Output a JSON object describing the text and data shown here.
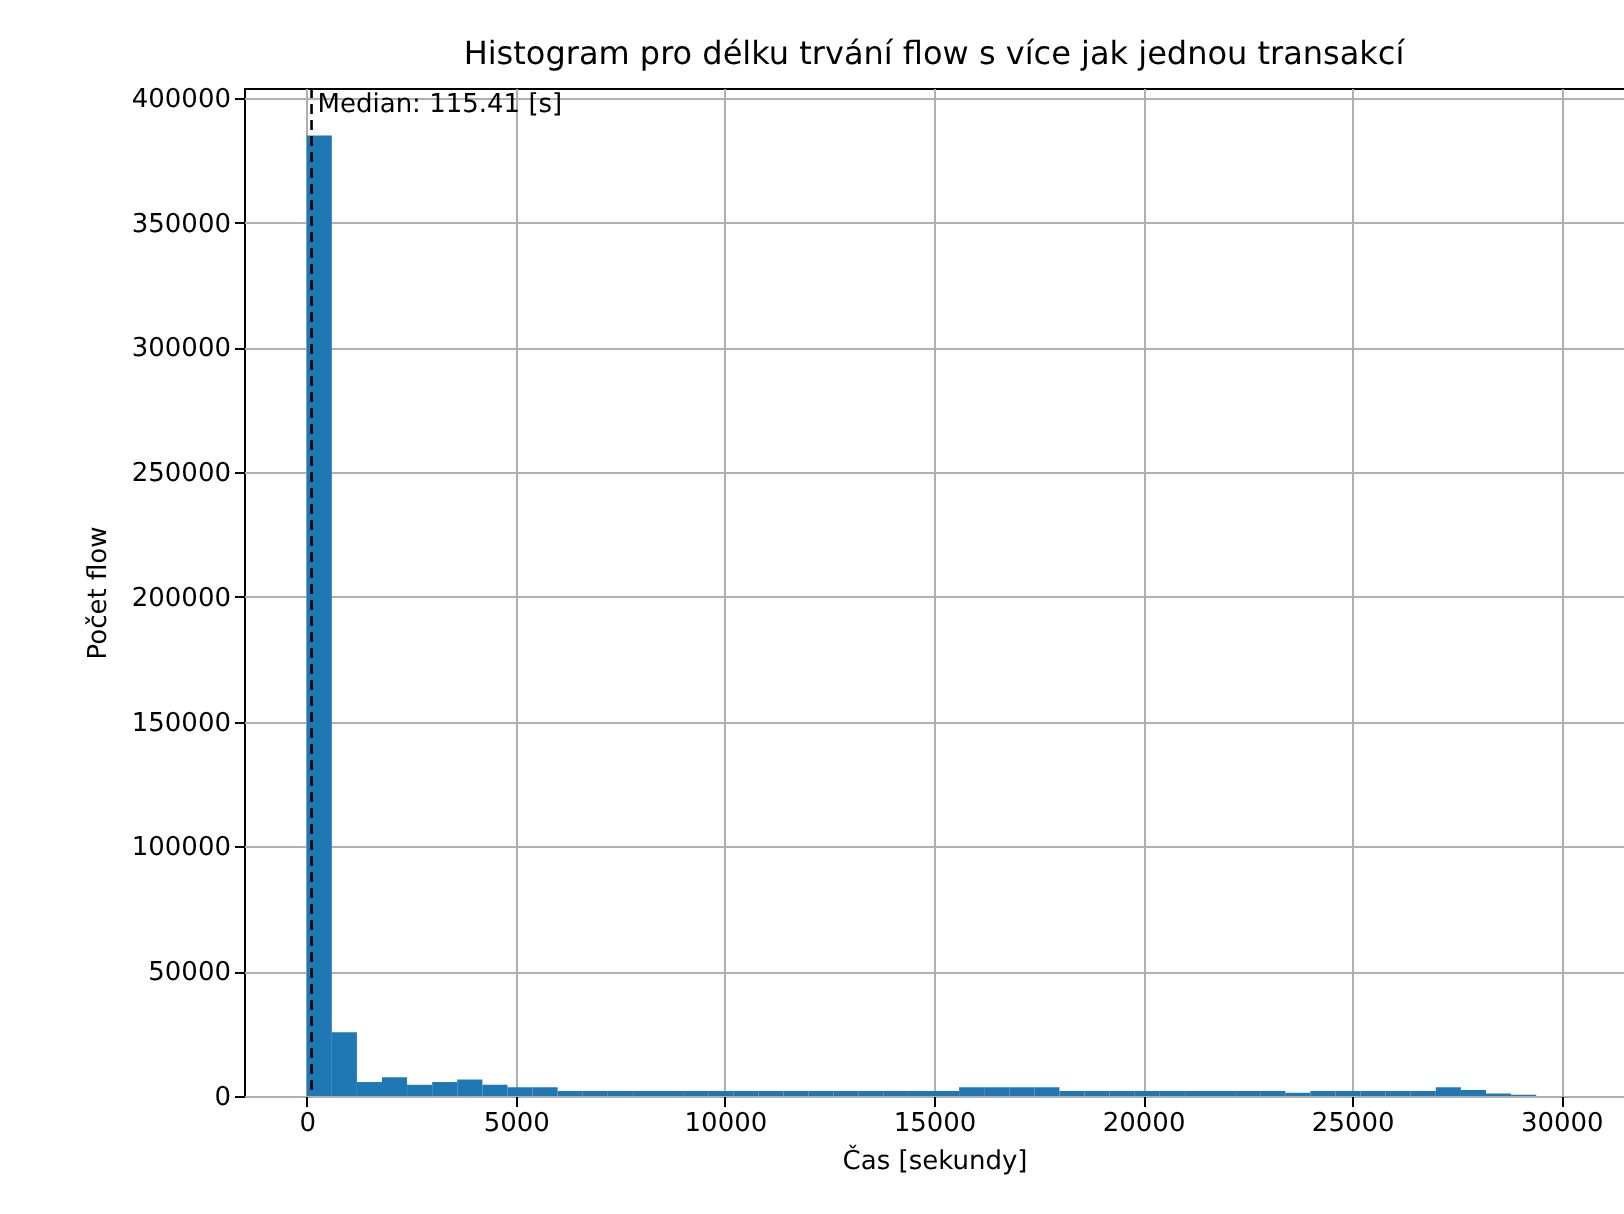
{
  "chart_data": {
    "type": "histogram",
    "title": "Histogram pro délku trvání flow s více jak jednou transakcí",
    "xlabel": "Čas [sekundy]",
    "ylabel": "Počet flow",
    "color": "#1f77b4",
    "bins": [
      0,
      600,
      1200,
      1800,
      2400,
      3000,
      3600,
      4200,
      4800,
      5400,
      6000,
      6600,
      7200,
      7800,
      8400,
      9000,
      9600,
      10200,
      10800,
      11400,
      12000,
      12600,
      13200,
      13800,
      14400,
      15000,
      15600,
      16200,
      16800,
      17400,
      18000,
      18600,
      19200,
      19800,
      20400,
      21000,
      21600,
      22200,
      22800,
      23400,
      24000,
      24600,
      25200,
      25800,
      26400,
      27000,
      27600,
      28200,
      28800,
      29400,
      30000
    ],
    "values": [
      385000,
      25600,
      5600,
      7500,
      4500,
      5600,
      6600,
      4500,
      3500,
      3500,
      2000,
      2000,
      2000,
      2000,
      2000,
      2000,
      2000,
      2000,
      2000,
      2000,
      2000,
      2000,
      2000,
      2000,
      2000,
      2000,
      3500,
      3500,
      3500,
      3500,
      2000,
      2000,
      2000,
      2000,
      2000,
      2000,
      2000,
      2000,
      2000,
      1300,
      2000,
      2000,
      2000,
      2000,
      2000,
      3500,
      2400,
      1000,
      500,
      0
    ],
    "xlim": [
      -1500,
      31500
    ],
    "ylim": [
      0,
      404000
    ],
    "xticks": [
      0,
      5000,
      10000,
      15000,
      20000,
      25000,
      30000
    ],
    "yticks": [
      0,
      50000,
      100000,
      150000,
      200000,
      250000,
      300000,
      350000,
      400000
    ],
    "grid": true,
    "ref_lines": [
      {
        "axis": "x",
        "value": 115.41,
        "label": "Median: 115.41 [s]",
        "color": "#000000",
        "line_style": "dashed"
      }
    ]
  }
}
